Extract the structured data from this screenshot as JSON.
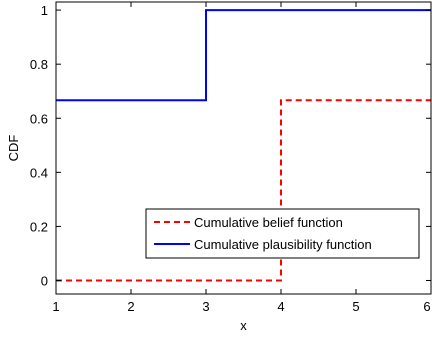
{
  "chart_data": {
    "type": "line",
    "xlabel": "x",
    "ylabel": "CDF",
    "xlim": [
      1,
      6
    ],
    "ylim": [
      -0.05,
      1.03
    ],
    "xticks": [
      1,
      2,
      3,
      4,
      5,
      6
    ],
    "yticks": [
      0,
      0.2,
      0.4,
      0.6,
      0.8,
      1
    ],
    "ytick_labels": [
      "0",
      "0.2",
      "0.4",
      "0.6",
      "0.8",
      "1"
    ],
    "grid": false,
    "legend_position": "lower-right",
    "series": [
      {
        "name": "Cumulative belief function",
        "style": "dashed",
        "color": "#ff0000",
        "x": [
          1,
          4,
          4,
          6
        ],
        "y": [
          0,
          0,
          0.6667,
          0.6667
        ]
      },
      {
        "name": "Cumulative plausibility function",
        "style": "solid",
        "color": "#0000ff",
        "x": [
          1,
          3,
          3,
          6
        ],
        "y": [
          0.6667,
          0.6667,
          1,
          1
        ]
      }
    ]
  }
}
